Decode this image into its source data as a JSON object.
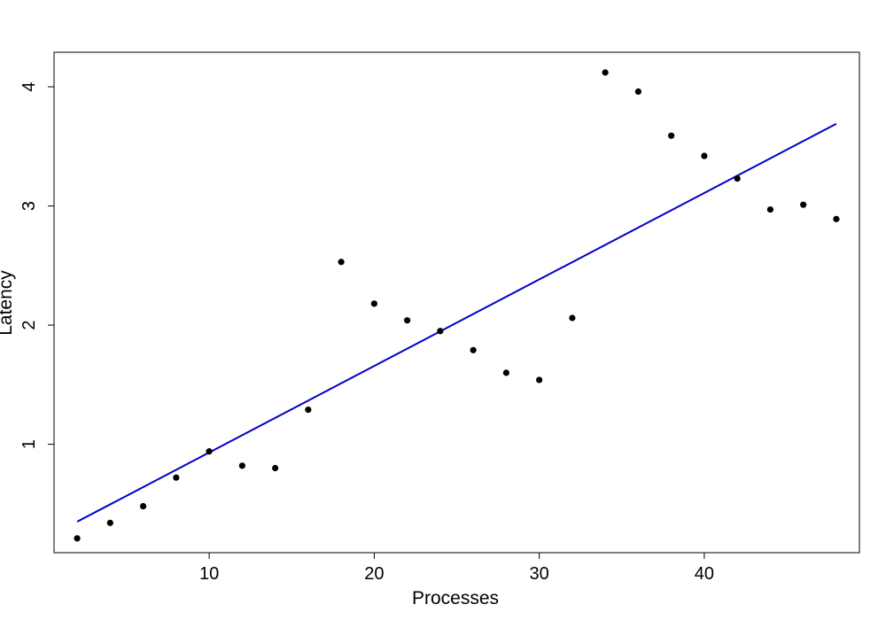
{
  "chart_data": {
    "type": "scatter",
    "title": "",
    "xlabel": "Processes",
    "ylabel": "Latency",
    "xlim": [
      0.6,
      49.4
    ],
    "ylim": [
      0.09,
      4.29
    ],
    "x_ticks": [
      10,
      20,
      30,
      40
    ],
    "y_ticks": [
      1,
      2,
      3,
      4
    ],
    "grid": false,
    "legend": "none",
    "colors": {
      "points": "#000000",
      "fit_line": "#0000cc"
    },
    "points": {
      "x": [
        2,
        4,
        6,
        8,
        10,
        12,
        14,
        16,
        18,
        20,
        22,
        24,
        26,
        28,
        30,
        32,
        34,
        36,
        38,
        40,
        42,
        44,
        46,
        48
      ],
      "y": [
        0.21,
        0.34,
        0.48,
        0.72,
        0.94,
        0.82,
        0.8,
        1.29,
        2.53,
        2.18,
        2.04,
        1.95,
        1.79,
        1.6,
        1.54,
        2.06,
        4.12,
        3.96,
        3.59,
        3.42,
        3.23,
        2.97,
        3.01,
        2.89
      ]
    },
    "fit_line": {
      "x": [
        2,
        48
      ],
      "y": [
        0.35,
        3.69
      ]
    }
  }
}
